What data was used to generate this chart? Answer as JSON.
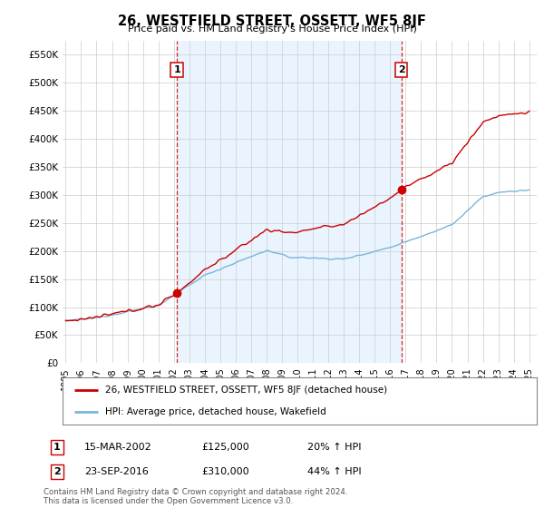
{
  "title": "26, WESTFIELD STREET, OSSETT, WF5 8JF",
  "subtitle": "Price paid vs. HM Land Registry's House Price Index (HPI)",
  "hpi_label": "HPI: Average price, detached house, Wakefield",
  "property_label": "26, WESTFIELD STREET, OSSETT, WF5 8JF (detached house)",
  "sale1_label": "1",
  "sale1_date": "15-MAR-2002",
  "sale1_price": "£125,000",
  "sale1_hpi": "20% ↑ HPI",
  "sale1_year": 2002.2,
  "sale1_value": 125000,
  "sale2_label": "2",
  "sale2_date": "23-SEP-2016",
  "sale2_price": "£310,000",
  "sale2_hpi": "44% ↑ HPI",
  "sale2_year": 2016.72,
  "sale2_value": 310000,
  "hpi_color": "#7ab5d8",
  "property_color": "#cc0000",
  "sale_marker_color": "#cc0000",
  "vline_color": "#cc0000",
  "shade_color": "#ddeeff",
  "background_color": "#ffffff",
  "grid_color": "#cccccc",
  "ylim_min": 0,
  "ylim_max": 575000,
  "yticks": [
    0,
    50000,
    100000,
    150000,
    200000,
    250000,
    300000,
    350000,
    400000,
    450000,
    500000,
    550000
  ],
  "ytick_labels": [
    "£0",
    "£50K",
    "£100K",
    "£150K",
    "£200K",
    "£250K",
    "£300K",
    "£350K",
    "£400K",
    "£450K",
    "£500K",
    "£550K"
  ],
  "xlim_min": 1994.8,
  "xlim_max": 2025.5,
  "xticks": [
    1995,
    1996,
    1997,
    1998,
    1999,
    2000,
    2001,
    2002,
    2003,
    2004,
    2005,
    2006,
    2007,
    2008,
    2009,
    2010,
    2011,
    2012,
    2013,
    2014,
    2015,
    2016,
    2017,
    2018,
    2019,
    2020,
    2021,
    2022,
    2023,
    2024,
    2025
  ],
  "footnote": "Contains HM Land Registry data © Crown copyright and database right 2024.\nThis data is licensed under the Open Government Licence v3.0."
}
